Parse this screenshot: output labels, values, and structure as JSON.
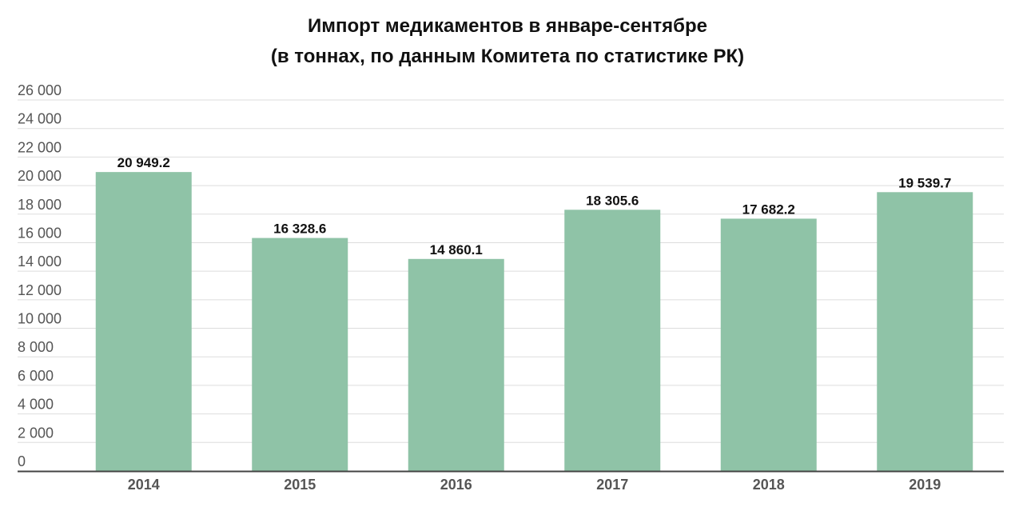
{
  "chart_data": {
    "type": "bar",
    "title": "Импорт медикаментов в январе-сентябре",
    "subtitle": "(в тоннах, по данным Комитета по статистике РК)",
    "xlabel": "",
    "ylabel": "",
    "categories": [
      "2014",
      "2015",
      "2016",
      "2017",
      "2018",
      "2019"
    ],
    "values": [
      20949.2,
      16328.6,
      14860.1,
      18305.6,
      17682.2,
      19539.7
    ],
    "value_labels": [
      "20 949.2",
      "16 328.6",
      "14 860.1",
      "18 305.6",
      "17 682.2",
      "19 539.7"
    ],
    "ylim": [
      0,
      26000
    ],
    "yticks": [
      0,
      2000,
      4000,
      6000,
      8000,
      10000,
      12000,
      14000,
      16000,
      18000,
      20000,
      22000,
      24000,
      26000
    ],
    "ytick_labels": [
      "0",
      "2 000",
      "4 000",
      "6 000",
      "8 000",
      "10 000",
      "12 000",
      "14 000",
      "16 000",
      "18 000",
      "20 000",
      "22 000",
      "24 000",
      "26 000"
    ],
    "grid": true,
    "legend": "none",
    "bar_color": "#8fc3a7",
    "grid_color": "#dddddd",
    "axis_color": "#444444"
  }
}
